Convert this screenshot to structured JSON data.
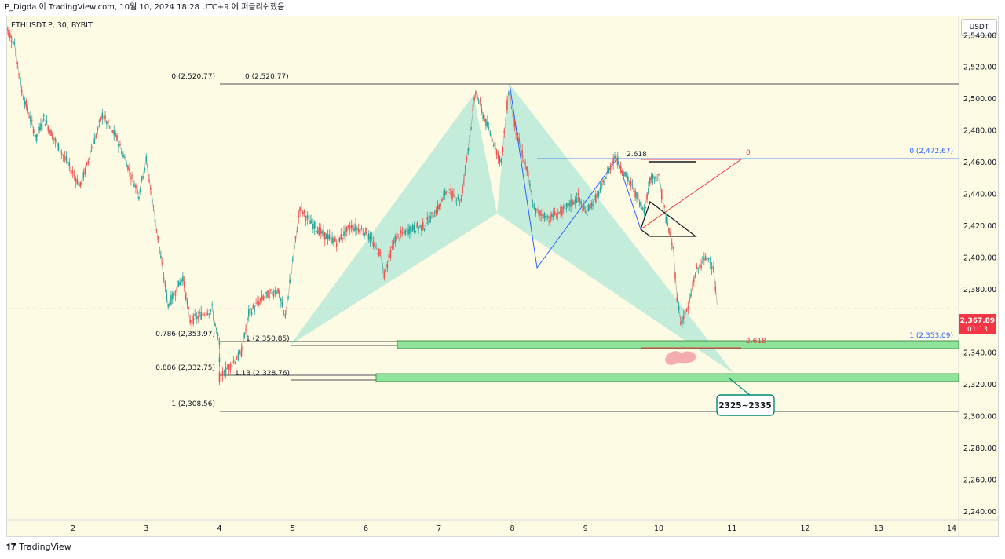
{
  "header": {
    "watermark_text": "P_Digda 이 TradingView.com, 10월 10, 2024 18:28 UTC+9 에 퍼블리쉬했음"
  },
  "symbol": "ETHUSDT.P, 30, BYBIT",
  "currency": "USDT",
  "footer": {
    "brand": "TradingView",
    "logo": "tv-logo-icon"
  },
  "price_badge": {
    "price": "2,367.89",
    "timer": "01:13",
    "color": "#f23645"
  },
  "colors": {
    "background": "#fefbe5",
    "pattern_fill": "#b9ead8",
    "zone_fill": "#90e39a",
    "blue_line": "#2962ff",
    "red_line": "#f23645"
  },
  "chart_data": {
    "type": "candlestick",
    "ylim": [
      2235,
      2552
    ],
    "yticks": [
      2540,
      2520,
      2500,
      2480,
      2460,
      2440,
      2420,
      2400,
      2380,
      2360,
      2340,
      2320,
      2300,
      2280,
      2260,
      2240
    ],
    "ytick_labels": [
      "2,540.00",
      "2,520.00",
      "2,500.00",
      "2,480.00",
      "2,460.00",
      "2,440.00",
      "2,420.00",
      "2,400.00",
      "2,380.00",
      "2,360.00",
      "2,340.00",
      "2,320.00",
      "2,300.00",
      "2,280.00",
      "2,260.00",
      "2,240.00"
    ],
    "xlim": [
      1.06,
      14.0
    ],
    "xticks": [
      2,
      3,
      4,
      5,
      6,
      7,
      8,
      9,
      10,
      11,
      12,
      13,
      14
    ],
    "xtick_labels": [
      "2",
      "3",
      "4",
      "5",
      "6",
      "7",
      "8",
      "9",
      "10",
      "11",
      "12",
      "13",
      "14"
    ],
    "current_price": 2367.89,
    "price_path": [
      [
        1.06,
        2548
      ],
      [
        1.2,
        2535
      ],
      [
        1.3,
        2505
      ],
      [
        1.5,
        2475
      ],
      [
        1.6,
        2488
      ],
      [
        1.8,
        2470
      ],
      [
        2.1,
        2445
      ],
      [
        2.4,
        2490
      ],
      [
        2.6,
        2475
      ],
      [
        2.9,
        2440
      ],
      [
        3.0,
        2462
      ],
      [
        3.2,
        2400
      ],
      [
        3.3,
        2370
      ],
      [
        3.5,
        2388
      ],
      [
        3.6,
        2360
      ],
      [
        3.9,
        2368
      ],
      [
        4.0,
        2345
      ],
      [
        4.0,
        2325
      ],
      [
        4.3,
        2340
      ],
      [
        4.4,
        2365
      ],
      [
        4.6,
        2375
      ],
      [
        4.8,
        2380
      ],
      [
        4.9,
        2362
      ],
      [
        5.0,
        2398
      ],
      [
        5.1,
        2432
      ],
      [
        5.2,
        2425
      ],
      [
        5.4,
        2415
      ],
      [
        5.6,
        2410
      ],
      [
        5.8,
        2420
      ],
      [
        6.0,
        2416
      ],
      [
        6.2,
        2402
      ],
      [
        6.25,
        2390
      ],
      [
        6.4,
        2412
      ],
      [
        6.6,
        2418
      ],
      [
        6.8,
        2420
      ],
      [
        7.0,
        2432
      ],
      [
        7.1,
        2442
      ],
      [
        7.3,
        2436
      ],
      [
        7.4,
        2470
      ],
      [
        7.5,
        2505
      ],
      [
        7.6,
        2490
      ],
      [
        7.7,
        2478
      ],
      [
        7.85,
        2460
      ],
      [
        7.95,
        2505
      ],
      [
        8.05,
        2480
      ],
      [
        8.2,
        2455
      ],
      [
        8.3,
        2430
      ],
      [
        8.5,
        2425
      ],
      [
        8.7,
        2430
      ],
      [
        8.9,
        2438
      ],
      [
        9.0,
        2428
      ],
      [
        9.2,
        2442
      ],
      [
        9.4,
        2464
      ],
      [
        9.6,
        2448
      ],
      [
        9.8,
        2430
      ],
      [
        9.9,
        2452
      ],
      [
        10.0,
        2450
      ],
      [
        10.1,
        2425
      ],
      [
        10.2,
        2405
      ],
      [
        10.25,
        2375
      ],
      [
        10.3,
        2360
      ],
      [
        10.4,
        2368
      ],
      [
        10.5,
        2390
      ],
      [
        10.6,
        2398
      ],
      [
        10.7,
        2400
      ],
      [
        10.75,
        2392
      ],
      [
        10.8,
        2370
      ]
    ],
    "fib_levels": [
      {
        "label": "0 (2,520.77)",
        "value": 2520.77
      },
      {
        "label": "0.786 (2,353.97)",
        "value": 2353.97
      },
      {
        "label": "0.886 (2,332.75)",
        "value": 2332.75
      },
      {
        "label": "1 (2,308.56)",
        "value": 2308.56
      },
      {
        "label": "0 (2,520.77)",
        "value": 2520.77
      },
      {
        "label": "1 (2,350.85)",
        "value": 2350.85
      },
      {
        "label": "1.13 (2,328.76)",
        "value": 2328.76
      },
      {
        "label": "0 (2,472.67)",
        "value": 2472.67
      },
      {
        "label": "1 (2,353.09)",
        "value": 2353.09
      },
      {
        "label": "2.618",
        "value": 2472.67
      },
      {
        "label": "0",
        "value": 2472.67
      },
      {
        "label": "2.618",
        "value": 2351.5
      }
    ],
    "zones": [
      {
        "from": 2349,
        "to": 2355,
        "x_start": 6.43
      },
      {
        "from": 2327,
        "to": 2333,
        "x_start": 6.13
      }
    ],
    "annotation": "2325~2335"
  }
}
